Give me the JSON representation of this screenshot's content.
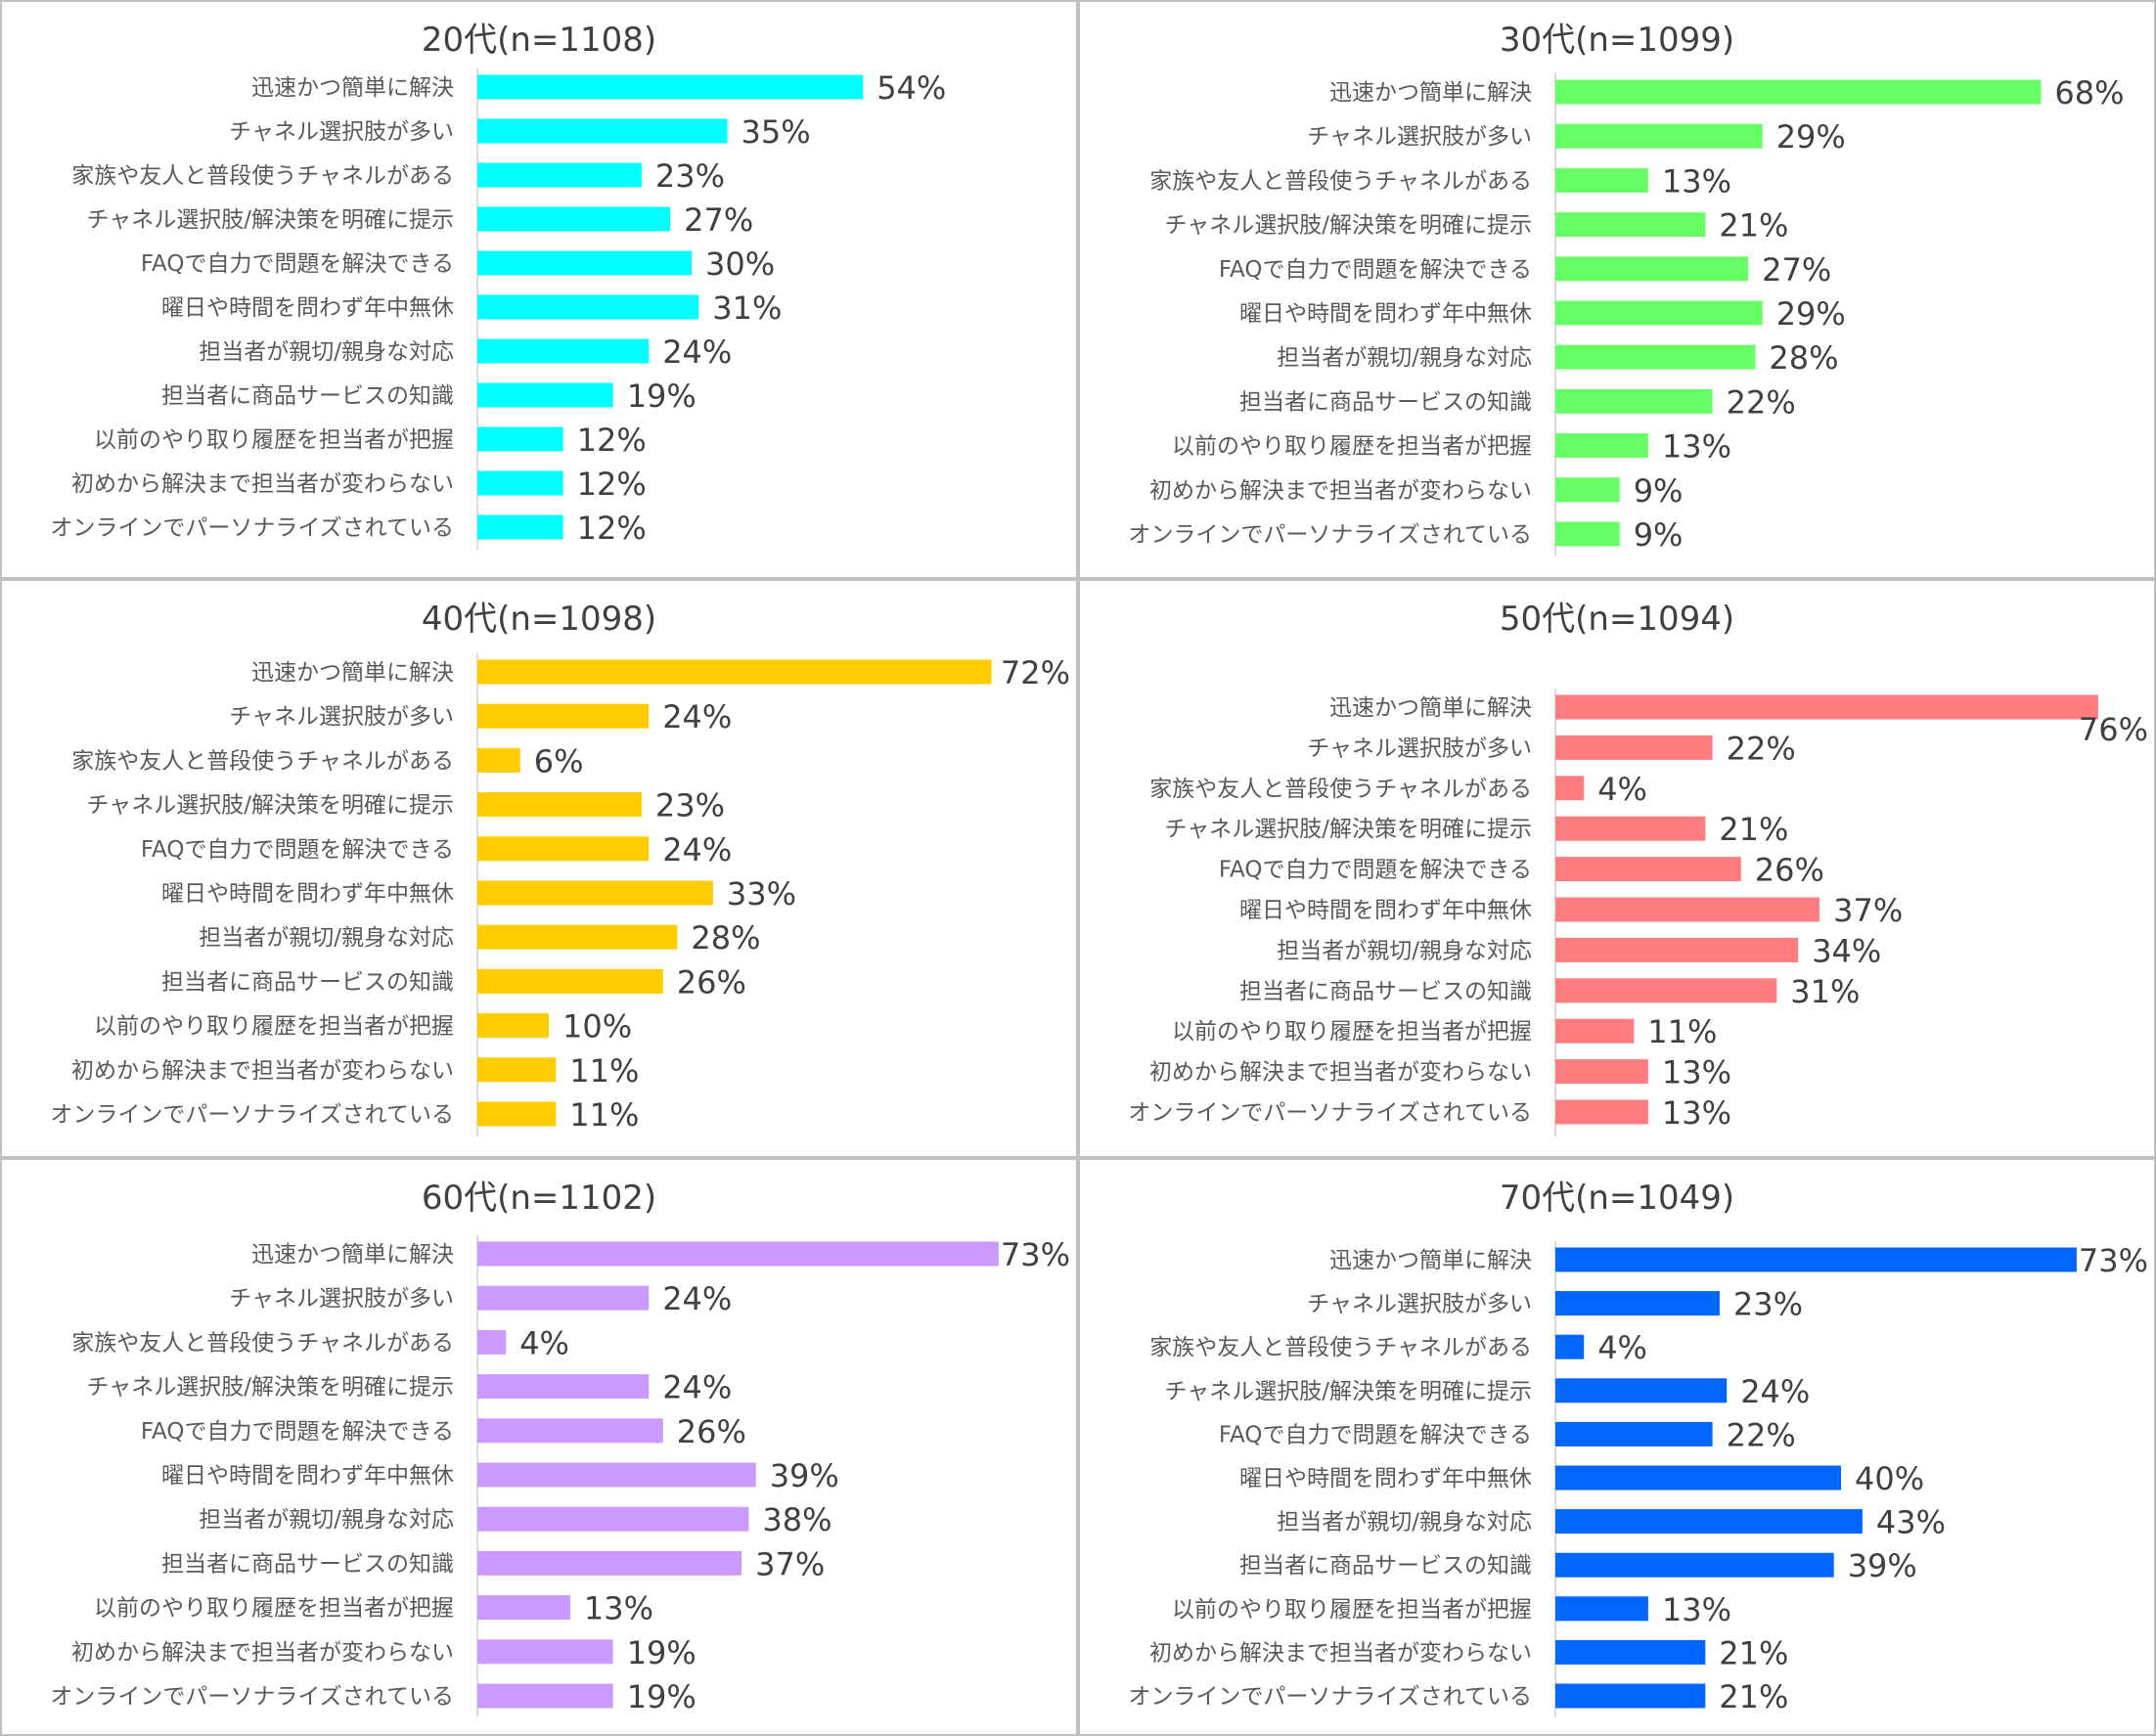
{
  "categories": [
    "迅速かつ簡単に解決",
    "チャネル選択肢が多い",
    "家族や友人と普段使うチャネルがある",
    "チャネル選択肢/解決策を明確に提示",
    "FAQで自力で問題を解決できる",
    "曜日や時間を問わず年中無休",
    "担当者が親切/親身な対応",
    "担当者に商品サービスの知識",
    "以前のやり取り履歴を担当者が把握",
    "初めから解決まで担当者が変わらない",
    "オンラインでパーソナライズされている"
  ],
  "chart_data": [
    {
      "type": "bar",
      "title": "20代(n=1108)",
      "color": "#00ffff",
      "values": [
        54,
        35,
        23,
        27,
        30,
        31,
        24,
        19,
        12,
        12,
        12
      ],
      "labels": [
        "54%",
        "35%",
        "23%",
        "27%",
        "30%",
        "31%",
        "24%",
        "19%",
        "12%",
        "12%",
        "12%"
      ]
    },
    {
      "type": "bar",
      "title": "30代(n=1099)",
      "color": "#66ff66",
      "values": [
        68,
        29,
        13,
        21,
        27,
        29,
        28,
        22,
        13,
        9,
        9
      ],
      "labels": [
        "68%",
        "29%",
        "13%",
        "21%",
        "27%",
        "29%",
        "28%",
        "22%",
        "13%",
        "9%",
        "9%"
      ]
    },
    {
      "type": "bar",
      "title": "40代(n=1098)",
      "color": "#ffcc00",
      "values": [
        72,
        24,
        6,
        23,
        24,
        33,
        28,
        26,
        10,
        11,
        11
      ],
      "labels": [
        "72%",
        "24%",
        "6%",
        "23%",
        "24%",
        "33%",
        "28%",
        "26%",
        "10%",
        "11%",
        "11%"
      ]
    },
    {
      "type": "bar",
      "title": "50代(n=1094)",
      "color": "#ff7c80",
      "values": [
        76,
        22,
        4,
        21,
        26,
        37,
        34,
        31,
        11,
        13,
        13
      ],
      "labels": [
        "76%",
        "22%",
        "4%",
        "21%",
        "26%",
        "37%",
        "34%",
        "31%",
        "11%",
        "13%",
        "13%"
      ]
    },
    {
      "type": "bar",
      "title": "60代(n=1102)",
      "color": "#cc99ff",
      "values": [
        73,
        24,
        4,
        24,
        26,
        39,
        38,
        37,
        13,
        19,
        19
      ],
      "labels": [
        "73%",
        "24%",
        "4%",
        "24%",
        "26%",
        "39%",
        "38%",
        "37%",
        "13%",
        "19%",
        "19%"
      ]
    },
    {
      "type": "bar",
      "title": "70代(n=1049)",
      "color": "#0066ff",
      "values": [
        73,
        23,
        4,
        24,
        22,
        40,
        43,
        39,
        13,
        21,
        21
      ],
      "labels": [
        "73%",
        "23%",
        "4%",
        "24%",
        "22%",
        "40%",
        "43%",
        "39%",
        "13%",
        "21%",
        "21%"
      ]
    }
  ]
}
